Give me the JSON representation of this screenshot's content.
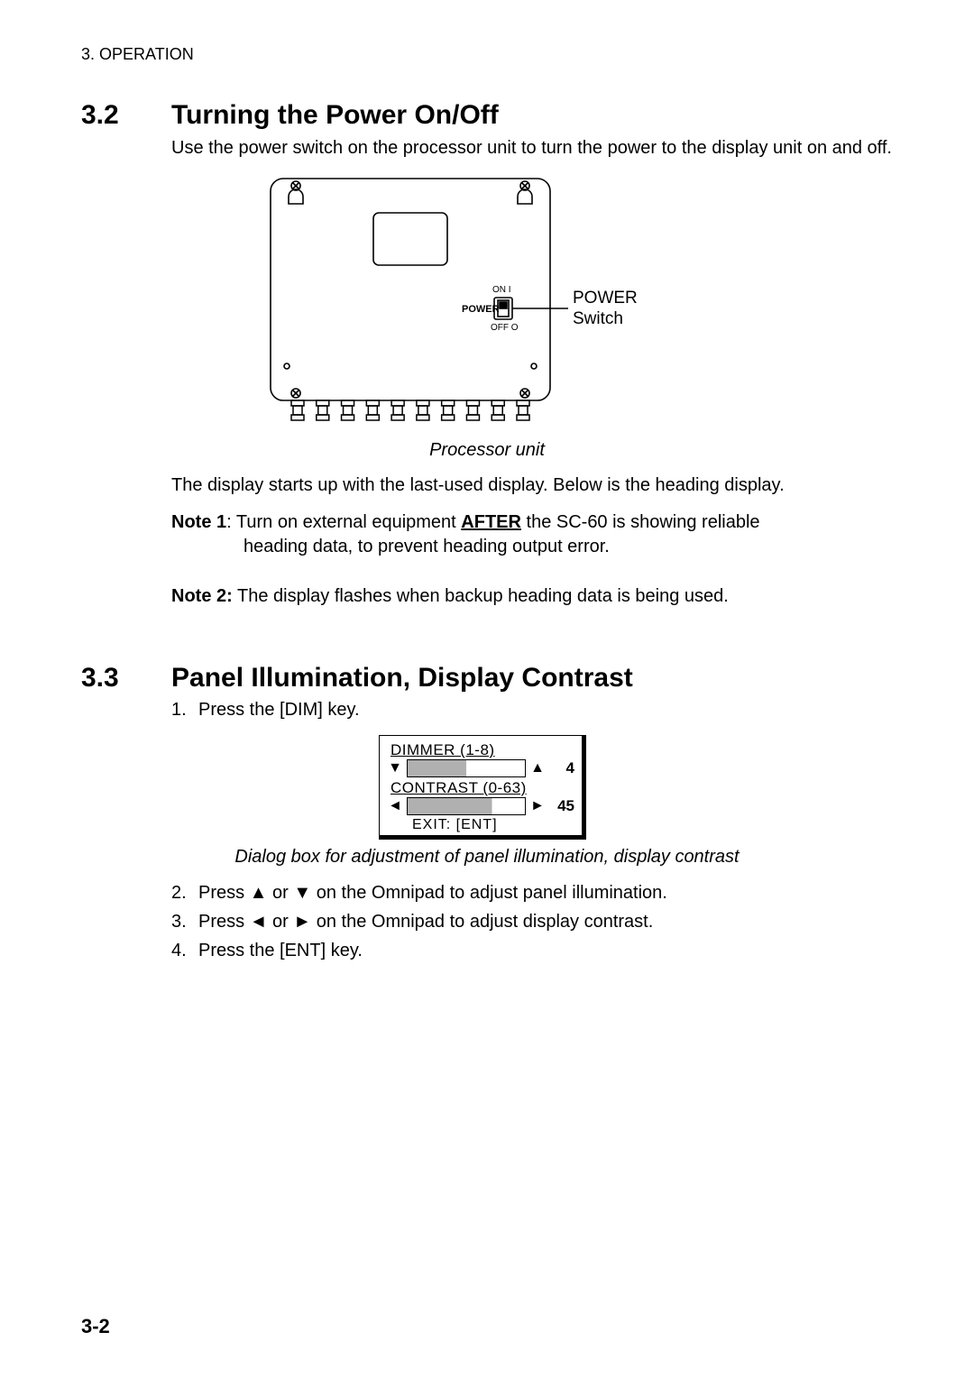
{
  "page": {
    "chapter_header": "3. OPERATION",
    "page_number": "3-2"
  },
  "section32": {
    "num": "3.2",
    "title": "Turning the Power On/Off",
    "intro": "Use the power switch on the processor unit to turn the power to the display unit on and off.",
    "figure": {
      "caption": "Processor unit",
      "power_label_l1": "POWER",
      "power_label_l2": "Switch",
      "switch_labels": {
        "on": "ON   I",
        "off": "OFF  O",
        "power": "POWER"
      },
      "connector_count": 10,
      "stroke_color": "#000000",
      "stroke_width": 1.6
    },
    "after_fig": "The display starts up with the last-used display. Below is the heading display.",
    "note1_label": "Note 1",
    "note1_before": ": Turn on external equipment ",
    "note1_after_word": "AFTER",
    "note1_after": " the SC-60 is showing reliable",
    "note1_line2": "heading data, to prevent heading output error.",
    "note2_label": "Note 2:",
    "note2_text": " The display flashes when backup heading data is being used."
  },
  "section33": {
    "num": "3.3",
    "title": "Panel Illumination, Display Contrast",
    "steps": [
      "Press the [DIM] key.",
      "Press ▲ or ▼ on the Omnipad to adjust panel illumination.",
      "Press ◄ or ► on the Omnipad to adjust display contrast.",
      "Press the [ENT] key."
    ],
    "dialog": {
      "dimmer_label": "DIMMER   (1-8)",
      "dimmer_value": "4",
      "dimmer_fill_pct": 50,
      "contrast_label": "CONTRAST (0-63)",
      "contrast_value": "45",
      "contrast_fill_pct": 72,
      "exit_label": "EXIT: [ENT]",
      "arrows": {
        "up": "▲",
        "down": "▼",
        "left": "◄",
        "right": "►"
      },
      "bar_fill_color": "#b0b0b0",
      "border_color": "#000000"
    },
    "figure_caption": "Dialog box for adjustment of panel illumination, display contrast"
  }
}
